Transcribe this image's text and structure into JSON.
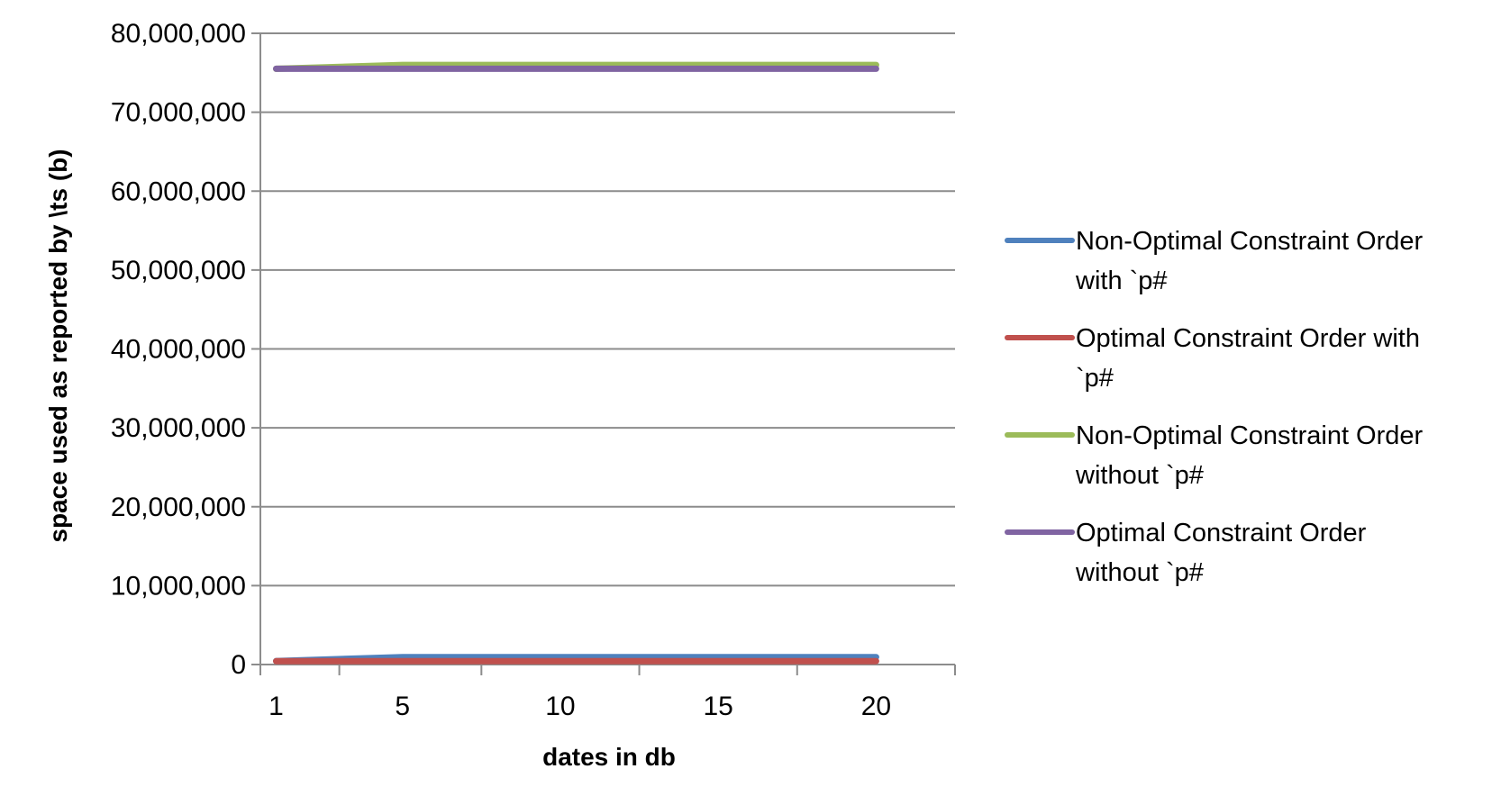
{
  "chart_data": {
    "type": "line",
    "title": "",
    "xlabel": "dates in db",
    "ylabel": "space used as reported by \\ts (b)",
    "x": [
      1,
      5,
      10,
      15,
      20
    ],
    "x_tick_labels": [
      "1",
      "5",
      "10",
      "15",
      "20"
    ],
    "y_tick_labels": [
      "0",
      "10,000,000",
      "20,000,000",
      "30,000,000",
      "40,000,000",
      "50,000,000",
      "60,000,000",
      "70,000,000",
      "80,000,000"
    ],
    "ylim": [
      0,
      80000000
    ],
    "grid": "horizontal",
    "legend_position": "right",
    "series": [
      {
        "name": "Non-Optimal Constraint Order with `p#",
        "legend_lines": [
          "Non-Optimal Constraint Order",
          "with `p#"
        ],
        "color": "#4F81BD",
        "values": [
          450000,
          950000,
          950000,
          950000,
          950000
        ]
      },
      {
        "name": "Optimal Constraint Order with `p#",
        "legend_lines": [
          "Optimal Constraint Order with",
          "`p#"
        ],
        "color": "#C0504D",
        "values": [
          420000,
          430000,
          430000,
          430000,
          430000
        ]
      },
      {
        "name": "Non-Optimal Constraint Order without `p#",
        "legend_lines": [
          "Non-Optimal Constraint Order",
          "without `p#"
        ],
        "color": "#9BBB59",
        "values": [
          75500000,
          76000000,
          76000000,
          76000000,
          76000000
        ]
      },
      {
        "name": "Optimal Constraint Order without `p#",
        "legend_lines": [
          "Optimal Constraint Order",
          "without `p#"
        ],
        "color": "#8064A2",
        "values": [
          75500000,
          75500000,
          75500000,
          75500000,
          75500000
        ]
      }
    ]
  }
}
